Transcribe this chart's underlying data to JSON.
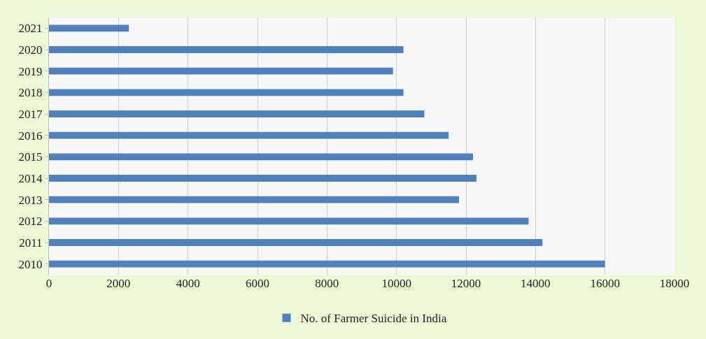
{
  "chart_data": {
    "type": "bar",
    "orientation": "horizontal",
    "categories": [
      "2021",
      "2020",
      "2019",
      "2018",
      "2017",
      "2016",
      "2015",
      "2014",
      "2013",
      "2012",
      "2011",
      "2010"
    ],
    "series": [
      {
        "name": "No. of Farmer Suicide in India",
        "color": "#4f81bd",
        "values": [
          2300,
          10200,
          9900,
          10200,
          10800,
          11500,
          12200,
          12300,
          11800,
          13800,
          14200,
          16000
        ]
      }
    ],
    "xlim": [
      0,
      18000
    ],
    "xticks": [
      0,
      2000,
      4000,
      6000,
      8000,
      10000,
      12000,
      14000,
      16000,
      18000
    ],
    "grid": "x",
    "legend": "bottom"
  }
}
